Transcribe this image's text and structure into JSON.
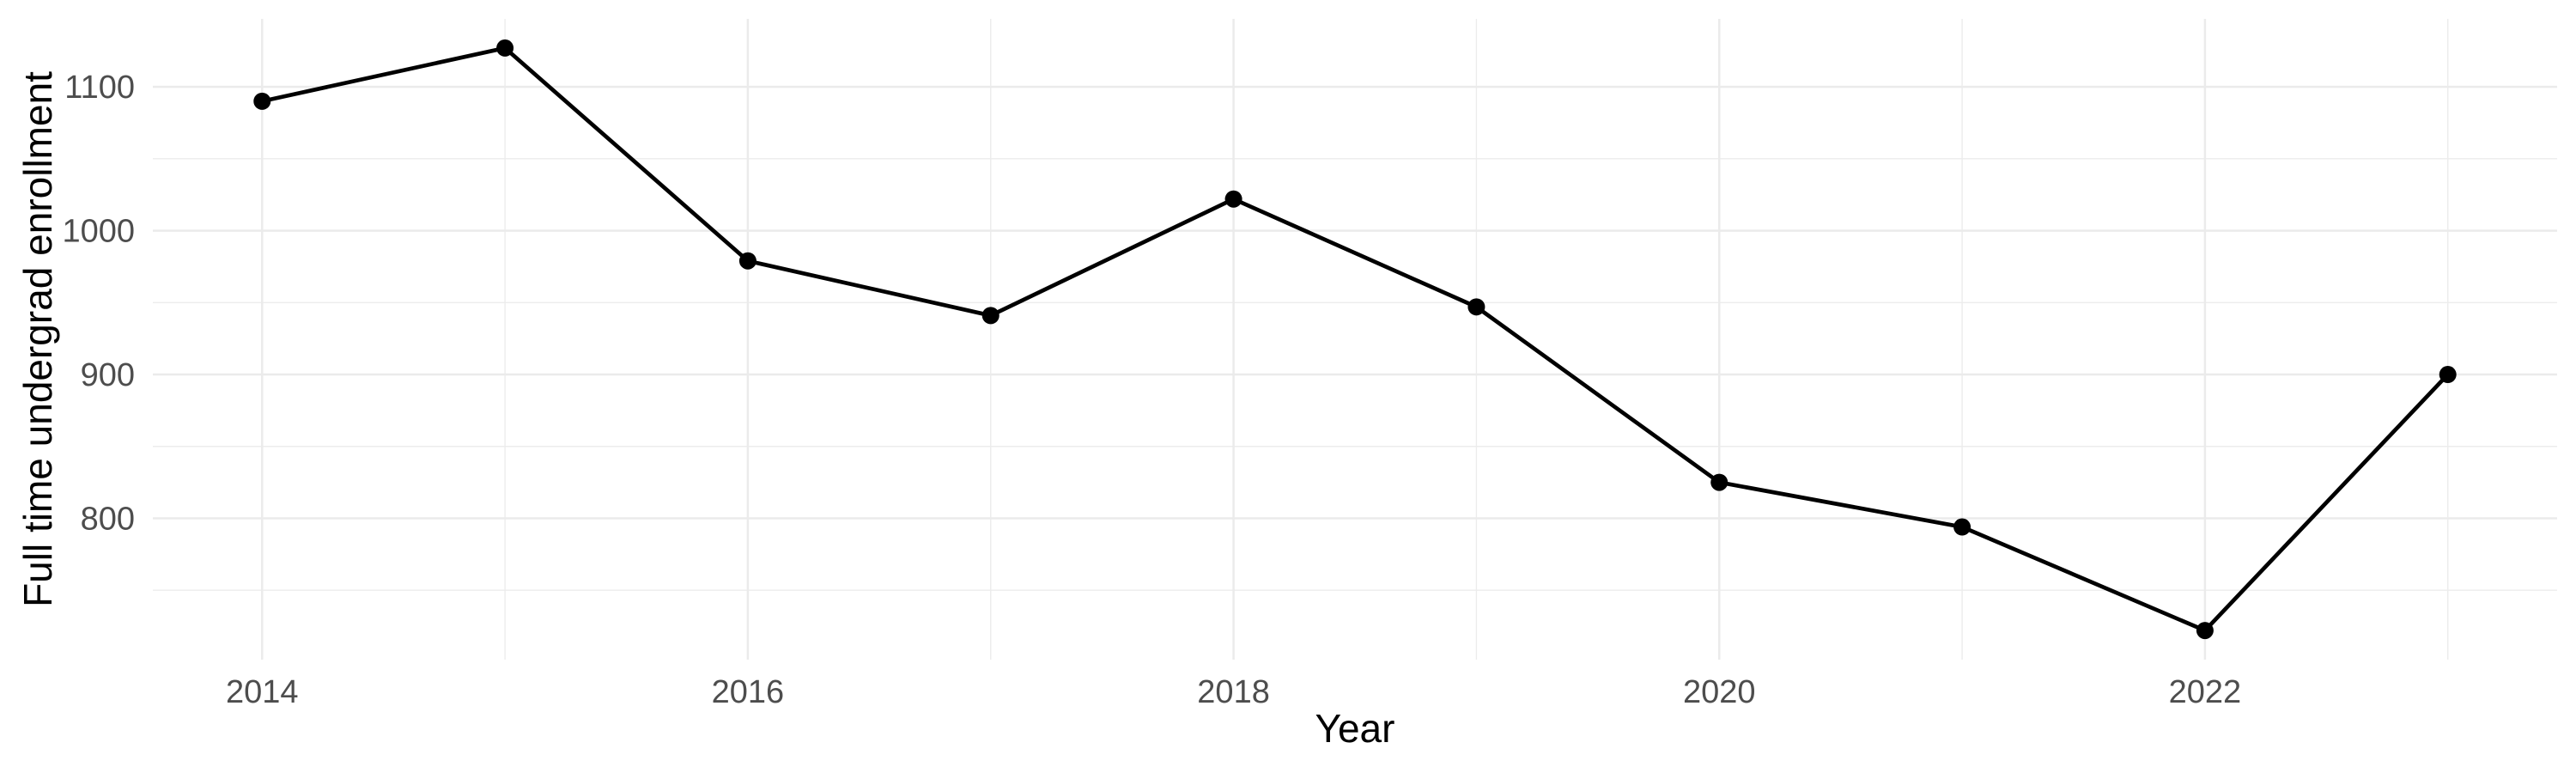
{
  "chart_data": {
    "type": "line",
    "title": "",
    "xlabel": "Year",
    "ylabel": "Full time undergrad enrollment",
    "series": [
      {
        "name": "Full time undergrad enrollment",
        "x": [
          2014,
          2015,
          2016,
          2017,
          2018,
          2019,
          2020,
          2021,
          2022,
          2023
        ],
        "values": [
          1090,
          1127,
          979,
          941,
          1022,
          947,
          825,
          794,
          722,
          900
        ]
      }
    ],
    "x_major_ticks": [
      2014,
      2016,
      2018,
      2020,
      2022
    ],
    "x_tick_labels": [
      "2014",
      "2016",
      "2018",
      "2020",
      "2022"
    ],
    "x_minor_gridlines": [
      2015,
      2017,
      2019,
      2021,
      2023
    ],
    "y_major_ticks": [
      800,
      900,
      1000,
      1100
    ],
    "y_tick_labels": [
      "800",
      "900",
      "1000",
      "1100"
    ],
    "y_minor_gridlines": [
      750,
      850,
      950,
      1050
    ],
    "xlim": [
      2013.55,
      2023.45
    ],
    "ylim": [
      701.75,
      1147.25
    ],
    "grid": true,
    "legend": "none",
    "marker": "point",
    "colors": {
      "line": "#000000",
      "point": "#000000",
      "grid_major": "#EBEBEB",
      "grid_minor": "#ECECEC",
      "tick_label": "#4D4D4D",
      "axis_title": "#000000",
      "background": "#FFFFFF"
    }
  }
}
